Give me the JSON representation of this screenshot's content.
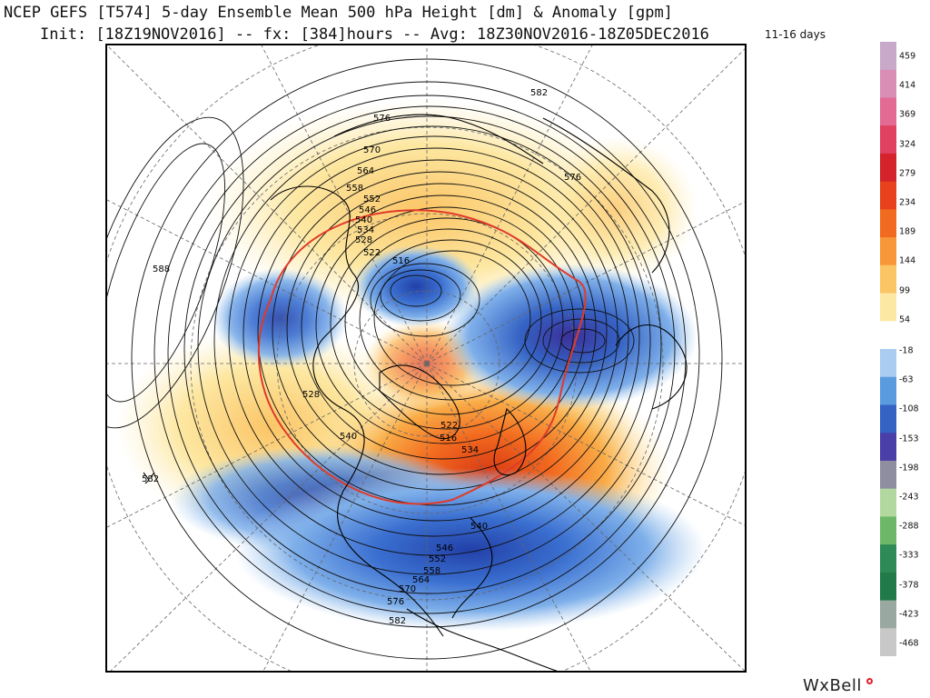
{
  "header": {
    "title_line1": "NCEP GEFS [T574] 5-day Ensemble Mean 500 hPa Height [dm] & Anomaly [gpm]",
    "title_line2": "Init: [18Z19NOV2016] -- fx: [384]hours -- Avg: 18Z30NOV2016-18Z05DEC2016",
    "range_label": "11-16 days"
  },
  "map": {
    "projection": "north-polar-stereographic",
    "height_contours_dm": [
      "582",
      "576",
      "570",
      "564",
      "558",
      "552",
      "546",
      "540",
      "534",
      "528",
      "522",
      "516",
      "588",
      "528",
      "540",
      "582",
      "522",
      "516",
      "534",
      "540",
      "546",
      "552",
      "558",
      "564",
      "570",
      "576",
      "582",
      "576"
    ]
  },
  "colorbar": {
    "unit": "gpm",
    "ticks": [
      "459",
      "414",
      "369",
      "324",
      "279",
      "234",
      "189",
      "144",
      "99",
      "54",
      "-18",
      "-63",
      "-108",
      "-153",
      "-198",
      "-243",
      "-288",
      "-333",
      "-378",
      "-423",
      "-468"
    ],
    "colors": [
      "#c9a9c9",
      "#d98fb5",
      "#e36a92",
      "#e04161",
      "#d4232a",
      "#e8421c",
      "#f26a1f",
      "#f7973a",
      "#fbc566",
      "#fde8a3",
      "#ffffff",
      "#a9ccf0",
      "#5a9be0",
      "#3563c4",
      "#4a3fa8",
      "#8e8ea0",
      "#b2d8a0",
      "#6db868",
      "#2e8b57",
      "#217a4a",
      "#9aa8a2",
      "#c8c8c8"
    ]
  },
  "brand": {
    "name": "WxBell"
  }
}
